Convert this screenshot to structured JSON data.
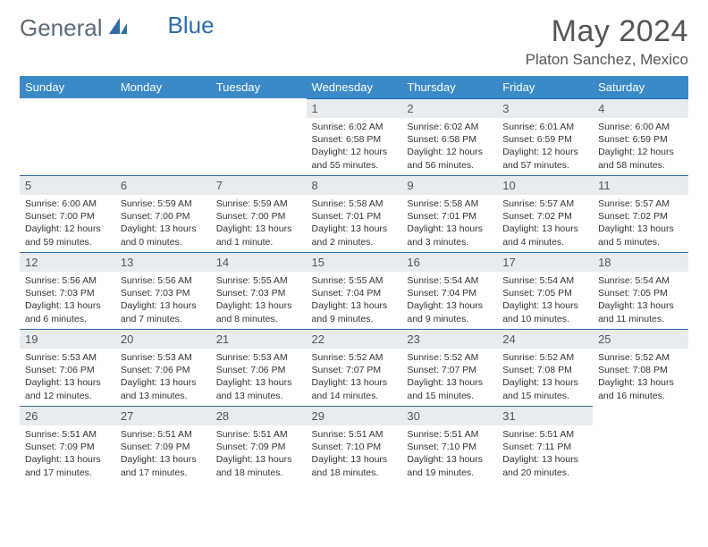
{
  "brand": {
    "part1": "General",
    "part2": "Blue"
  },
  "title": "May 2024",
  "location": "Platon Sanchez, Mexico",
  "colors": {
    "header_bg": "#3a8ac7",
    "day_num_bg": "#e9ecef",
    "accent_border": "#2d6ca7",
    "text": "#333333",
    "muted": "#555555"
  },
  "weekdays": [
    "Sunday",
    "Monday",
    "Tuesday",
    "Wednesday",
    "Thursday",
    "Friday",
    "Saturday"
  ],
  "weeks": [
    [
      null,
      null,
      null,
      {
        "n": "1",
        "sr": "6:02 AM",
        "ss": "6:58 PM",
        "dl": "12 hours and 55 minutes."
      },
      {
        "n": "2",
        "sr": "6:02 AM",
        "ss": "6:58 PM",
        "dl": "12 hours and 56 minutes."
      },
      {
        "n": "3",
        "sr": "6:01 AM",
        "ss": "6:59 PM",
        "dl": "12 hours and 57 minutes."
      },
      {
        "n": "4",
        "sr": "6:00 AM",
        "ss": "6:59 PM",
        "dl": "12 hours and 58 minutes."
      }
    ],
    [
      {
        "n": "5",
        "sr": "6:00 AM",
        "ss": "7:00 PM",
        "dl": "12 hours and 59 minutes."
      },
      {
        "n": "6",
        "sr": "5:59 AM",
        "ss": "7:00 PM",
        "dl": "13 hours and 0 minutes."
      },
      {
        "n": "7",
        "sr": "5:59 AM",
        "ss": "7:00 PM",
        "dl": "13 hours and 1 minute."
      },
      {
        "n": "8",
        "sr": "5:58 AM",
        "ss": "7:01 PM",
        "dl": "13 hours and 2 minutes."
      },
      {
        "n": "9",
        "sr": "5:58 AM",
        "ss": "7:01 PM",
        "dl": "13 hours and 3 minutes."
      },
      {
        "n": "10",
        "sr": "5:57 AM",
        "ss": "7:02 PM",
        "dl": "13 hours and 4 minutes."
      },
      {
        "n": "11",
        "sr": "5:57 AM",
        "ss": "7:02 PM",
        "dl": "13 hours and 5 minutes."
      }
    ],
    [
      {
        "n": "12",
        "sr": "5:56 AM",
        "ss": "7:03 PM",
        "dl": "13 hours and 6 minutes."
      },
      {
        "n": "13",
        "sr": "5:56 AM",
        "ss": "7:03 PM",
        "dl": "13 hours and 7 minutes."
      },
      {
        "n": "14",
        "sr": "5:55 AM",
        "ss": "7:03 PM",
        "dl": "13 hours and 8 minutes."
      },
      {
        "n": "15",
        "sr": "5:55 AM",
        "ss": "7:04 PM",
        "dl": "13 hours and 9 minutes."
      },
      {
        "n": "16",
        "sr": "5:54 AM",
        "ss": "7:04 PM",
        "dl": "13 hours and 9 minutes."
      },
      {
        "n": "17",
        "sr": "5:54 AM",
        "ss": "7:05 PM",
        "dl": "13 hours and 10 minutes."
      },
      {
        "n": "18",
        "sr": "5:54 AM",
        "ss": "7:05 PM",
        "dl": "13 hours and 11 minutes."
      }
    ],
    [
      {
        "n": "19",
        "sr": "5:53 AM",
        "ss": "7:06 PM",
        "dl": "13 hours and 12 minutes."
      },
      {
        "n": "20",
        "sr": "5:53 AM",
        "ss": "7:06 PM",
        "dl": "13 hours and 13 minutes."
      },
      {
        "n": "21",
        "sr": "5:53 AM",
        "ss": "7:06 PM",
        "dl": "13 hours and 13 minutes."
      },
      {
        "n": "22",
        "sr": "5:52 AM",
        "ss": "7:07 PM",
        "dl": "13 hours and 14 minutes."
      },
      {
        "n": "23",
        "sr": "5:52 AM",
        "ss": "7:07 PM",
        "dl": "13 hours and 15 minutes."
      },
      {
        "n": "24",
        "sr": "5:52 AM",
        "ss": "7:08 PM",
        "dl": "13 hours and 15 minutes."
      },
      {
        "n": "25",
        "sr": "5:52 AM",
        "ss": "7:08 PM",
        "dl": "13 hours and 16 minutes."
      }
    ],
    [
      {
        "n": "26",
        "sr": "5:51 AM",
        "ss": "7:09 PM",
        "dl": "13 hours and 17 minutes."
      },
      {
        "n": "27",
        "sr": "5:51 AM",
        "ss": "7:09 PM",
        "dl": "13 hours and 17 minutes."
      },
      {
        "n": "28",
        "sr": "5:51 AM",
        "ss": "7:09 PM",
        "dl": "13 hours and 18 minutes."
      },
      {
        "n": "29",
        "sr": "5:51 AM",
        "ss": "7:10 PM",
        "dl": "13 hours and 18 minutes."
      },
      {
        "n": "30",
        "sr": "5:51 AM",
        "ss": "7:10 PM",
        "dl": "13 hours and 19 minutes."
      },
      {
        "n": "31",
        "sr": "5:51 AM",
        "ss": "7:11 PM",
        "dl": "13 hours and 20 minutes."
      },
      null
    ]
  ],
  "labels": {
    "sunrise": "Sunrise:",
    "sunset": "Sunset:",
    "daylight": "Daylight:"
  }
}
